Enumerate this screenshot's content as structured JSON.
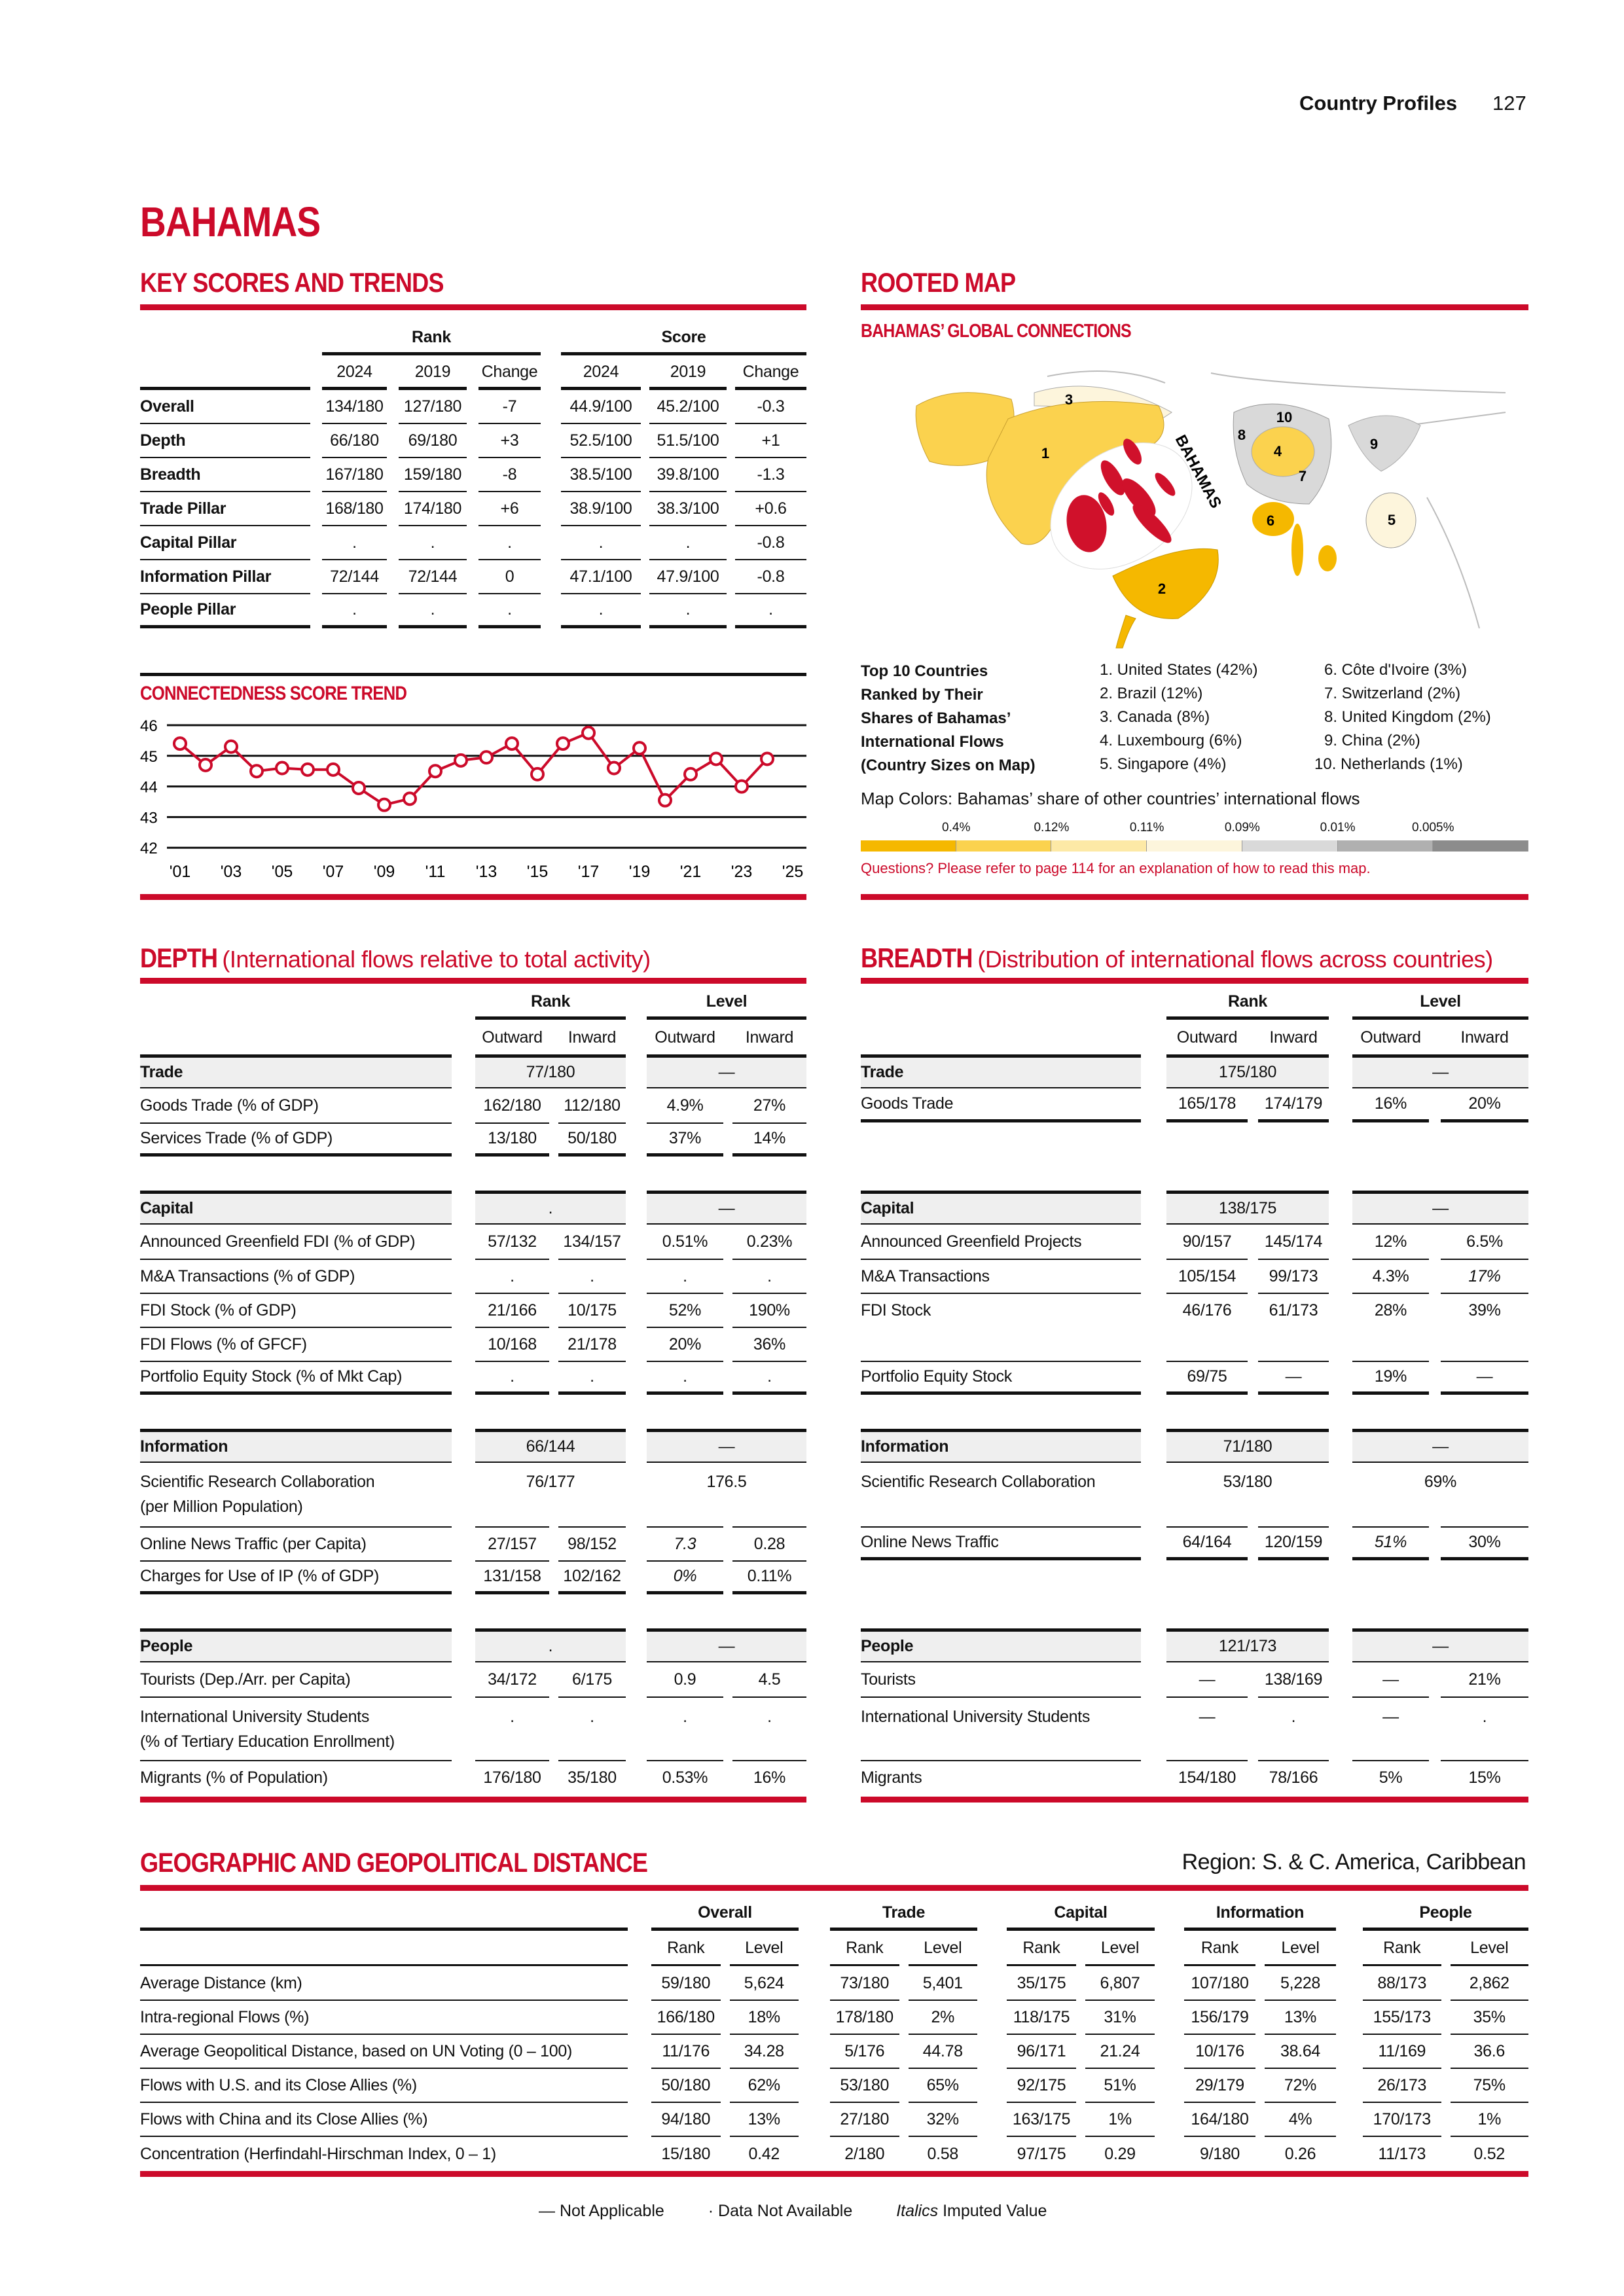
{
  "header": {
    "section": "Country Profiles",
    "page": "127"
  },
  "country": "BAHAMAS",
  "key_scores": {
    "title": "KEY SCORES AND TRENDS",
    "rank_label": "Rank",
    "score_label": "Score",
    "columns": [
      "2024",
      "2019",
      "Change",
      "2024",
      "2019",
      "Change"
    ],
    "rows": [
      {
        "label": "Overall",
        "cells": [
          "134/180",
          "127/180",
          "-7",
          "44.9/100",
          "45.2/100",
          "-0.3"
        ]
      },
      {
        "label": "Depth",
        "cells": [
          "66/180",
          "69/180",
          "+3",
          "52.5/100",
          "51.5/100",
          "+1"
        ]
      },
      {
        "label": "Breadth",
        "cells": [
          "167/180",
          "159/180",
          "-8",
          "38.5/100",
          "39.8/100",
          "-1.3"
        ]
      },
      {
        "label": "Trade Pillar",
        "cells": [
          "168/180",
          "174/180",
          "+6",
          "38.9/100",
          "38.3/100",
          "+0.6"
        ]
      },
      {
        "label": "Capital Pillar",
        "cells": [
          ".",
          ".",
          ".",
          ".",
          ".",
          "-0.8"
        ]
      },
      {
        "label": "Information Pillar",
        "cells": [
          "72/144",
          "72/144",
          "0",
          "47.1/100",
          "47.9/100",
          "-0.8"
        ]
      },
      {
        "label": "People Pillar",
        "cells": [
          ".",
          ".",
          ".",
          ".",
          ".",
          "."
        ]
      }
    ]
  },
  "chart_data": {
    "type": "line",
    "title": "CONNECTEDNESS SCORE TREND",
    "x": [
      2001,
      2002,
      2003,
      2004,
      2005,
      2006,
      2007,
      2008,
      2009,
      2010,
      2011,
      2012,
      2013,
      2014,
      2015,
      2016,
      2017,
      2018,
      2019,
      2020,
      2021,
      2022,
      2023,
      2024
    ],
    "y": [
      45.4,
      44.7,
      45.3,
      44.5,
      44.6,
      44.55,
      44.55,
      43.95,
      43.4,
      43.6,
      44.5,
      44.85,
      44.95,
      45.4,
      44.4,
      45.4,
      45.75,
      44.6,
      45.25,
      43.55,
      44.4,
      44.9,
      44.0,
      44.9
    ],
    "ylim": [
      42,
      46
    ],
    "yticks": [
      "42",
      "43",
      "44",
      "45",
      "46"
    ],
    "xticks": [
      "'01",
      "'03",
      "'05",
      "'07",
      "'09",
      "'11",
      "'13",
      "'15",
      "'17",
      "'19",
      "'21",
      "'23",
      "'25"
    ],
    "grid": true,
    "color": "#cc0a2a"
  },
  "rooted_map": {
    "title": "ROOTED MAP",
    "subtitle": "BAHAMAS’ GLOBAL CONNECTIONS",
    "map_labels": [
      "1",
      "2",
      "3",
      "4",
      "5",
      "6",
      "7",
      "8",
      "9",
      "10"
    ],
    "map_country_label": "BAHAMAS",
    "top10_heading": "Top 10 Countries\nRanked by Their\nShares of Bahamas’\nInternational Flows\n(Country Sizes on Map)",
    "top10": [
      "1. United States (42%)",
      "2. Brazil (12%)",
      "3. Canada (8%)",
      "4. Luxembourg (6%)",
      "5. Singapore (4%)",
      "6. Côte d'Ivoire (3%)",
      "7. Switzerland (2%)",
      "8. United Kingdom (2%)",
      "9. China (2%)",
      "10. Netherlands (1%)"
    ],
    "colors_caption": "Map Colors: Bahamas’ share of other countries’ international flows",
    "legend_thresholds": [
      "0.4%",
      "0.12%",
      "0.11%",
      "0.09%",
      "0.01%",
      "0.005%"
    ],
    "legend_colors": [
      "#f5b800",
      "#fbd24e",
      "#fde9a6",
      "#fdf5dc",
      "#d9d9d9",
      "#b0b0b0",
      "#8c8c8c"
    ],
    "note": "Questions? Please refer to page 114 for an explanation of how to read this map."
  },
  "depth": {
    "title": "DEPTH",
    "subtitle": "(International flows relative to total activity)",
    "headers": {
      "rank": "Rank",
      "level": "Level",
      "outward": "Outward",
      "inward": "Inward"
    },
    "sections": [
      {
        "name": "Trade",
        "rank": "77/180",
        "level": "—",
        "rows": [
          {
            "label": "Goods Trade (% of GDP)",
            "cells": [
              "162/180",
              "112/180",
              "4.9%",
              "27%"
            ]
          },
          {
            "label": "Services Trade (% of GDP)",
            "cells": [
              "13/180",
              "50/180",
              "37%",
              "14%"
            ]
          }
        ]
      },
      {
        "name": "Capital",
        "rank": ".",
        "level": "—",
        "rows": [
          {
            "label": "Announced Greenfield FDI (% of GDP)",
            "cells": [
              "57/132",
              "134/157",
              "0.51%",
              "0.23%"
            ]
          },
          {
            "label": "M&A Transactions (% of GDP)",
            "cells": [
              ".",
              ".",
              ".",
              "."
            ]
          },
          {
            "label": "FDI Stock (% of GDP)",
            "cells": [
              "21/166",
              "10/175",
              "52%",
              "190%"
            ]
          },
          {
            "label": "FDI Flows (% of GFCF)",
            "cells": [
              "10/168",
              "21/178",
              "20%",
              "36%"
            ]
          },
          {
            "label": "Portfolio Equity Stock (% of Mkt Cap)",
            "cells": [
              ".",
              ".",
              ".",
              "."
            ]
          }
        ]
      },
      {
        "name": "Information",
        "rank": "66/144",
        "level": "—",
        "rows": [
          {
            "label": "Scientific Research Collaboration\n(per Million Population)",
            "cells": [
              "76/177",
              "176.5"
            ]
          },
          {
            "label": "Online News Traffic (per Capita)",
            "cells": [
              "27/157",
              "98/152",
              {
                "value": "7.3",
                "imputed": true
              },
              "0.28"
            ]
          },
          {
            "label": "Charges for Use of IP (% of GDP)",
            "cells": [
              "131/158",
              "102/162",
              {
                "value": "0%",
                "imputed": true
              },
              "0.11%"
            ]
          }
        ]
      },
      {
        "name": "People",
        "rank": ".",
        "level": "—",
        "rows": [
          {
            "label": "Tourists (Dep./Arr. per Capita)",
            "cells": [
              "34/172",
              "6/175",
              "0.9",
              "4.5"
            ]
          },
          {
            "label": "International University Students\n(% of Tertiary Education Enrollment)",
            "cells": [
              ".",
              ".",
              ".",
              "."
            ]
          },
          {
            "label": "Migrants (% of Population)",
            "cells": [
              "176/180",
              "35/180",
              "0.53%",
              "16%"
            ]
          }
        ]
      }
    ]
  },
  "breadth": {
    "title": "BREADTH",
    "subtitle": "(Distribution of international flows across countries)",
    "headers": {
      "rank": "Rank",
      "level": "Level",
      "outward": "Outward",
      "inward": "Inward"
    },
    "sections": [
      {
        "name": "Trade",
        "rank": "175/180",
        "level": "—",
        "rows": [
          {
            "label": "Goods Trade",
            "cells": [
              "165/178",
              "174/179",
              "16%",
              "20%"
            ]
          },
          null
        ]
      },
      {
        "name": "Capital",
        "rank": "138/175",
        "level": "—",
        "rows": [
          {
            "label": "Announced Greenfield Projects",
            "cells": [
              "90/157",
              "145/174",
              "12%",
              "6.5%"
            ]
          },
          {
            "label": "M&A Transactions",
            "cells": [
              "105/154",
              "99/173",
              "4.3%",
              {
                "value": "17%",
                "imputed": true
              }
            ]
          },
          {
            "label": "FDI Stock",
            "cells": [
              "46/176",
              "61/173",
              "28%",
              "39%"
            ]
          },
          null,
          {
            "label": "Portfolio Equity Stock",
            "cells": [
              "69/75",
              "—",
              "19%",
              "—"
            ]
          }
        ]
      },
      {
        "name": "Information",
        "rank": "71/180",
        "level": "—",
        "rows": [
          {
            "label": "Scientific Research Collaboration",
            "cells": [
              "53/180",
              "69%"
            ]
          },
          {
            "label": "Online News Traffic",
            "cells": [
              "64/164",
              "120/159",
              {
                "value": "51%",
                "imputed": true
              },
              "30%"
            ]
          },
          null
        ]
      },
      {
        "name": "People",
        "rank": "121/173",
        "level": "—",
        "rows": [
          {
            "label": "Tourists",
            "cells": [
              "—",
              "138/169",
              "—",
              "21%"
            ]
          },
          {
            "label": "International University Students",
            "cells": [
              "—",
              ".",
              "—",
              "."
            ]
          },
          {
            "label": "Migrants",
            "cells": [
              "154/180",
              "78/166",
              "5%",
              "15%"
            ]
          }
        ]
      }
    ]
  },
  "distance": {
    "title": "GEOGRAPHIC AND GEOPOLITICAL DISTANCE",
    "region": "Region: S. & C. America, Caribbean",
    "groups": [
      "Overall",
      "Trade",
      "Capital",
      "Information",
      "People"
    ],
    "rank_label": "Rank",
    "level_label": "Level",
    "rows": [
      {
        "label": "Average Distance (km)",
        "cells": [
          "59/180",
          "5,624",
          "73/180",
          "5,401",
          "35/175",
          "6,807",
          "107/180",
          "5,228",
          "88/173",
          "2,862"
        ]
      },
      {
        "label": "Intra-regional Flows (%)",
        "cells": [
          "166/180",
          "18%",
          "178/180",
          "2%",
          "118/175",
          "31%",
          "156/179",
          "13%",
          "155/173",
          "35%"
        ]
      },
      {
        "label": "Average Geopolitical Distance, based on UN Voting (0 – 100)",
        "cells": [
          "11/176",
          "34.28",
          "5/176",
          "44.78",
          "96/171",
          "21.24",
          "10/176",
          "38.64",
          "11/169",
          "36.6"
        ]
      },
      {
        "label": "Flows with U.S. and its Close Allies (%)",
        "cells": [
          "50/180",
          "62%",
          "53/180",
          "65%",
          "92/175",
          "51%",
          "29/179",
          "72%",
          "26/173",
          "75%"
        ]
      },
      {
        "label": "Flows with China and its Close Allies (%)",
        "cells": [
          "94/180",
          "13%",
          "27/180",
          "32%",
          "163/175",
          "1%",
          "164/180",
          "4%",
          "170/173",
          "1%"
        ]
      },
      {
        "label": "Concentration (Herfindahl-Hirschman Index, 0 – 1)",
        "cells": [
          "15/180",
          "0.42",
          "2/180",
          "0.58",
          "97/175",
          "0.29",
          "9/180",
          "0.26",
          "11/173",
          "0.52"
        ]
      }
    ]
  },
  "legend": {
    "na_symbol": "—",
    "na": "Not Applicable",
    "dna_symbol": "·",
    "dna": "Data Not Available",
    "italics_word": "Italics",
    "italics": "Imputed Value"
  }
}
